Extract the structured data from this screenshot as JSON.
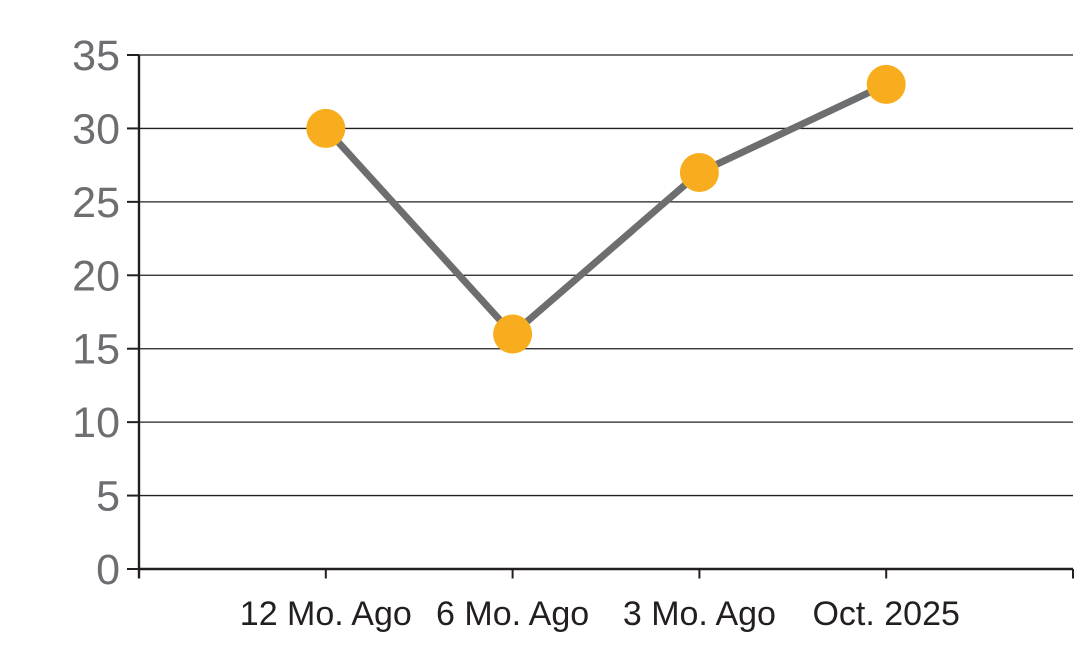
{
  "chart": {
    "background": "#ffffff"
  },
  "chart_data": {
    "type": "line",
    "categories": [
      "12 Mo. Ago",
      "6 Mo. Ago",
      "3 Mo. Ago",
      "Oct. 2025"
    ],
    "values": [
      30,
      16,
      27,
      33
    ],
    "title": "",
    "xlabel": "",
    "ylabel": "",
    "ylim": [
      0,
      35
    ],
    "yticks": [
      0,
      5,
      10,
      15,
      20,
      25,
      30,
      35
    ],
    "grid": true,
    "legend": "none",
    "marker": "circle",
    "colors": {
      "marker": "#F8AD1E",
      "line": "#6D6E70",
      "grid": "#231F20",
      "axis": "#231F20",
      "y_tick_label": "#6D6E71",
      "x_tick_label": "#231F20"
    }
  }
}
